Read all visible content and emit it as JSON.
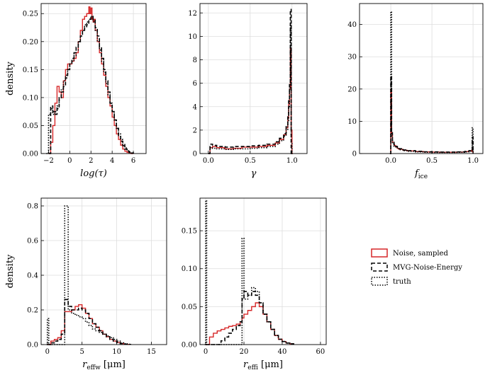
{
  "legend": {
    "entries": [
      {
        "label": "Noise, sampled",
        "color": "#d62728",
        "dash": "solid"
      },
      {
        "label": "MVG-Noise-Energy",
        "color": "#000000",
        "dash": "dashed"
      },
      {
        "label": "truth",
        "color": "#000000",
        "dash": "dotted"
      }
    ],
    "placement": "right-middle"
  },
  "chart_data": [
    {
      "type": "step",
      "xlabel": "log(τ)",
      "xlabel_style": "italic",
      "ylabel": "density",
      "xlim": [
        -2.7,
        7.2
      ],
      "ylim": [
        0,
        0.268
      ],
      "xticks": [
        -2,
        0,
        2,
        4,
        6
      ],
      "xticklabels": [
        "−2",
        "0",
        "2",
        "4",
        "6"
      ],
      "yticks": [
        0,
        0.05,
        0.1,
        0.15,
        0.2,
        0.25
      ],
      "yticklabels": [
        "0.00",
        "0.05",
        "0.10",
        "0.15",
        "0.20",
        "0.25"
      ],
      "grid": true,
      "series": [
        {
          "name": "Noise, sampled",
          "x": [
            -2.0,
            -1.8,
            -1.6,
            -1.4,
            -1.2,
            -1.0,
            -0.8,
            -0.6,
            -0.4,
            -0.2,
            0.0,
            0.2,
            0.4,
            0.6,
            0.8,
            1.0,
            1.2,
            1.4,
            1.6,
            1.8,
            1.9,
            2.0,
            2.1,
            2.2,
            2.3,
            2.4,
            2.6,
            2.8,
            3.0,
            3.2,
            3.4,
            3.6,
            3.8,
            4.0,
            4.2,
            4.4,
            4.6,
            4.8,
            5.0,
            5.2,
            5.4,
            5.6,
            5.8,
            6.0
          ],
          "y": [
            0.0,
            0.02,
            0.05,
            0.09,
            0.12,
            0.11,
            0.1,
            0.13,
            0.15,
            0.16,
            0.16,
            0.165,
            0.17,
            0.18,
            0.2,
            0.22,
            0.24,
            0.245,
            0.25,
            0.262,
            0.25,
            0.26,
            0.24,
            0.235,
            0.24,
            0.22,
            0.2,
            0.18,
            0.16,
            0.14,
            0.12,
            0.1,
            0.085,
            0.065,
            0.05,
            0.035,
            0.025,
            0.015,
            0.008,
            0.004,
            0.002,
            0.001,
            0.0,
            0.0
          ]
        },
        {
          "name": "MVG-Noise-Energy",
          "x": [
            -2.0,
            -1.8,
            -1.6,
            -1.4,
            -1.2,
            -1.0,
            -0.8,
            -0.6,
            -0.4,
            -0.2,
            0.0,
            0.2,
            0.4,
            0.6,
            0.8,
            1.0,
            1.2,
            1.4,
            1.6,
            1.8,
            2.0,
            2.2,
            2.4,
            2.6,
            2.8,
            3.0,
            3.2,
            3.4,
            3.6,
            3.8,
            4.0,
            4.2,
            4.4,
            4.6,
            4.8,
            5.0,
            5.2,
            5.4,
            5.6,
            5.8,
            6.0
          ],
          "y": [
            0.0,
            0.085,
            0.075,
            0.07,
            0.08,
            0.1,
            0.11,
            0.12,
            0.135,
            0.15,
            0.16,
            0.17,
            0.18,
            0.19,
            0.2,
            0.21,
            0.22,
            0.225,
            0.23,
            0.24,
            0.245,
            0.24,
            0.225,
            0.21,
            0.19,
            0.17,
            0.15,
            0.13,
            0.11,
            0.09,
            0.075,
            0.06,
            0.045,
            0.032,
            0.022,
            0.014,
            0.008,
            0.004,
            0.002,
            0.001,
            0.0
          ]
        },
        {
          "name": "truth",
          "x": [
            -2.2,
            -2.0,
            -1.8,
            -1.6,
            -1.4,
            -1.2,
            -1.0,
            -0.8,
            -0.6,
            -0.4,
            -0.2,
            0.0,
            0.2,
            0.4,
            0.6,
            0.8,
            1.0,
            1.2,
            1.4,
            1.6,
            1.8,
            2.0,
            2.2,
            2.4,
            2.6,
            2.8,
            3.0,
            3.2,
            3.4,
            3.6,
            3.8,
            4.0,
            4.2,
            4.4,
            4.6,
            4.8,
            5.0,
            5.2,
            5.4,
            5.6,
            5.8,
            6.0
          ],
          "y": [
            0.0,
            0.07,
            0.08,
            0.07,
            0.075,
            0.085,
            0.1,
            0.115,
            0.13,
            0.14,
            0.15,
            0.16,
            0.165,
            0.175,
            0.185,
            0.2,
            0.21,
            0.22,
            0.23,
            0.235,
            0.24,
            0.245,
            0.235,
            0.22,
            0.2,
            0.185,
            0.165,
            0.145,
            0.125,
            0.105,
            0.09,
            0.075,
            0.06,
            0.045,
            0.035,
            0.025,
            0.016,
            0.01,
            0.005,
            0.003,
            0.001,
            0.0
          ]
        }
      ]
    },
    {
      "type": "step",
      "xlabel": "γ",
      "xlabel_style": "italic",
      "ylabel": "",
      "xlim": [
        -0.1,
        1.18
      ],
      "ylim": [
        0,
        12.8
      ],
      "xticks": [
        0,
        0.5,
        1.0
      ],
      "xticklabels": [
        "0.0",
        "0.5",
        "1.0"
      ],
      "yticks": [
        0,
        2,
        4,
        6,
        8,
        10,
        12
      ],
      "yticklabels": [
        "0",
        "2",
        "4",
        "6",
        "8",
        "10",
        "12"
      ],
      "grid": true,
      "series": [
        {
          "name": "Noise, sampled",
          "x": [
            0.0,
            0.02,
            0.05,
            0.1,
            0.2,
            0.3,
            0.4,
            0.5,
            0.6,
            0.7,
            0.8,
            0.85,
            0.9,
            0.93,
            0.95,
            0.96,
            0.97,
            0.98,
            0.99,
            1.0,
            1.01
          ],
          "y": [
            0.0,
            0.5,
            0.6,
            0.5,
            0.4,
            0.45,
            0.55,
            0.55,
            0.6,
            0.7,
            0.9,
            1.2,
            1.6,
            2.2,
            3.0,
            4.2,
            5.5,
            9.0,
            2.0,
            0.0,
            0.0
          ]
        },
        {
          "name": "MVG-Noise-Energy",
          "x": [
            0.0,
            0.02,
            0.05,
            0.1,
            0.2,
            0.3,
            0.4,
            0.5,
            0.6,
            0.7,
            0.8,
            0.85,
            0.9,
            0.93,
            0.95,
            0.96,
            0.97,
            0.98,
            0.99,
            1.0,
            1.01
          ],
          "y": [
            0.0,
            0.8,
            0.7,
            0.6,
            0.55,
            0.6,
            0.6,
            0.65,
            0.7,
            0.8,
            1.0,
            1.3,
            1.7,
            2.3,
            3.2,
            4.5,
            6.0,
            12.3,
            0.0,
            0.0,
            0.0
          ]
        },
        {
          "name": "truth",
          "x": [
            0.0,
            0.02,
            0.05,
            0.1,
            0.2,
            0.3,
            0.4,
            0.5,
            0.6,
            0.7,
            0.8,
            0.85,
            0.9,
            0.93,
            0.95,
            0.96,
            0.97,
            0.98,
            0.99,
            1.0,
            1.01
          ],
          "y": [
            0.0,
            0.5,
            0.45,
            0.4,
            0.35,
            0.4,
            0.4,
            0.45,
            0.5,
            0.6,
            0.8,
            1.1,
            1.5,
            2.0,
            2.8,
            4.0,
            5.5,
            11.0,
            1.0,
            0.0,
            0.0
          ]
        }
      ]
    },
    {
      "type": "step",
      "xlabel": "fice",
      "xlabel_style": "italic-subscript",
      "ylabel": "",
      "xlim": [
        -0.38,
        1.12
      ],
      "ylim": [
        0,
        46.5
      ],
      "xticks": [
        0,
        0.5,
        1.0
      ],
      "xticklabels": [
        "0.0",
        "0.5",
        "1.0"
      ],
      "yticks": [
        0,
        10,
        20,
        30,
        40
      ],
      "yticklabels": [
        "0",
        "10",
        "20",
        "30",
        "40"
      ],
      "grid": true,
      "series": [
        {
          "name": "Noise, sampled",
          "x": [
            -0.01,
            0.0,
            0.01,
            0.02,
            0.04,
            0.06,
            0.08,
            0.1,
            0.15,
            0.2,
            0.3,
            0.4,
            0.5,
            0.6,
            0.7,
            0.8,
            0.9,
            0.95,
            0.98,
            0.99,
            1.0
          ],
          "y": [
            0.0,
            20.0,
            6.0,
            3.5,
            2.5,
            2.0,
            1.6,
            1.3,
            1.0,
            0.8,
            0.6,
            0.5,
            0.45,
            0.4,
            0.4,
            0.45,
            0.6,
            0.8,
            1.0,
            0.6,
            0.0
          ]
        },
        {
          "name": "MVG-Noise-Energy",
          "x": [
            -0.01,
            0.0,
            0.01,
            0.02,
            0.04,
            0.06,
            0.08,
            0.1,
            0.15,
            0.2,
            0.3,
            0.4,
            0.5,
            0.6,
            0.7,
            0.8,
            0.9,
            0.95,
            0.98,
            0.99,
            1.0
          ],
          "y": [
            0.0,
            24.0,
            7.0,
            4.0,
            2.8,
            2.2,
            1.8,
            1.5,
            1.1,
            0.9,
            0.7,
            0.55,
            0.5,
            0.45,
            0.45,
            0.5,
            0.65,
            0.9,
            1.2,
            5.0,
            0.0
          ]
        },
        {
          "name": "truth",
          "x": [
            -0.01,
            0.0,
            0.01,
            0.02,
            0.04,
            0.06,
            0.08,
            0.1,
            0.15,
            0.2,
            0.3,
            0.4,
            0.5,
            0.6,
            0.7,
            0.8,
            0.9,
            0.95,
            0.98,
            0.99,
            1.0
          ],
          "y": [
            0.0,
            44.0,
            5.0,
            3.0,
            2.2,
            1.8,
            1.5,
            1.2,
            0.9,
            0.7,
            0.5,
            0.4,
            0.35,
            0.35,
            0.35,
            0.4,
            0.5,
            0.7,
            1.0,
            8.0,
            0.0
          ]
        }
      ]
    },
    {
      "type": "step",
      "xlabel": "reffw [μm]",
      "xlabel_style": "italic-subscript",
      "ylabel": "density",
      "xlim": [
        -0.9,
        17.2
      ],
      "ylim": [
        0,
        0.845
      ],
      "xticks": [
        0,
        5,
        10,
        15
      ],
      "xticklabels": [
        "0",
        "5",
        "10",
        "15"
      ],
      "yticks": [
        0,
        0.2,
        0.4,
        0.6,
        0.8
      ],
      "yticklabels": [
        "0.0",
        "0.2",
        "0.4",
        "0.6",
        "0.8"
      ],
      "grid": true,
      "series": [
        {
          "name": "Noise, sampled",
          "x": [
            0.0,
            0.5,
            1.0,
            1.5,
            2.0,
            2.5,
            3.0,
            3.5,
            4.0,
            4.5,
            5.0,
            5.5,
            6.0,
            6.5,
            7.0,
            7.5,
            8.0,
            8.5,
            9.0,
            9.5,
            10.0,
            10.5,
            11.0,
            11.5,
            12.0
          ],
          "y": [
            0.0,
            0.02,
            0.03,
            0.04,
            0.08,
            0.19,
            0.19,
            0.2,
            0.22,
            0.23,
            0.21,
            0.18,
            0.15,
            0.12,
            0.1,
            0.08,
            0.06,
            0.045,
            0.03,
            0.02,
            0.012,
            0.006,
            0.003,
            0.001,
            0.0
          ]
        },
        {
          "name": "MVG-Noise-Energy",
          "x": [
            0.0,
            0.5,
            1.0,
            1.5,
            2.0,
            2.5,
            3.0,
            3.5,
            4.0,
            4.5,
            5.0,
            5.5,
            6.0,
            6.5,
            7.0,
            7.5,
            8.0,
            8.5,
            9.0,
            9.5,
            10.0,
            10.5,
            11.0,
            11.5,
            12.0
          ],
          "y": [
            0.0,
            0.01,
            0.02,
            0.03,
            0.06,
            0.26,
            0.22,
            0.2,
            0.2,
            0.21,
            0.2,
            0.18,
            0.15,
            0.12,
            0.1,
            0.08,
            0.06,
            0.045,
            0.03,
            0.02,
            0.012,
            0.006,
            0.003,
            0.001,
            0.0
          ]
        },
        {
          "name": "truth",
          "x": [
            -0.1,
            0.0,
            0.2,
            1.0,
            1.5,
            2.0,
            2.5,
            3.0,
            3.5,
            4.0,
            4.5,
            5.0,
            5.5,
            6.0,
            6.5,
            7.0,
            7.5,
            8.0,
            8.5,
            9.0,
            9.5,
            10.0,
            10.5,
            11.0,
            11.5,
            12.0
          ],
          "y": [
            0.0,
            0.15,
            0.0,
            0.0,
            0.0,
            0.0,
            0.8,
            0.2,
            0.18,
            0.17,
            0.16,
            0.15,
            0.13,
            0.11,
            0.09,
            0.08,
            0.07,
            0.06,
            0.05,
            0.04,
            0.03,
            0.02,
            0.01,
            0.005,
            0.002,
            0.0
          ]
        }
      ]
    },
    {
      "type": "step",
      "xlabel": "reffi [μm]",
      "xlabel_style": "italic-subscript",
      "ylabel": "",
      "xlim": [
        -3,
        63
      ],
      "ylim": [
        0,
        0.193
      ],
      "xticks": [
        0,
        20,
        40,
        60
      ],
      "xticklabels": [
        "0",
        "20",
        "40",
        "60"
      ],
      "yticks": [
        0,
        0.05,
        0.1,
        0.15
      ],
      "yticklabels": [
        "0.00",
        "0.05",
        "0.10",
        "0.15"
      ],
      "grid": true,
      "series": [
        {
          "name": "Noise, sampled",
          "x": [
            0,
            2,
            4,
            6,
            8,
            10,
            12,
            14,
            16,
            18,
            19,
            20,
            22,
            24,
            26,
            28,
            30,
            32,
            34,
            36,
            38,
            40,
            42,
            44,
            46
          ],
          "y": [
            0.0,
            0.01,
            0.015,
            0.018,
            0.02,
            0.022,
            0.024,
            0.025,
            0.027,
            0.03,
            0.035,
            0.04,
            0.045,
            0.05,
            0.055,
            0.05,
            0.04,
            0.03,
            0.02,
            0.012,
            0.007,
            0.004,
            0.002,
            0.001,
            0.0
          ]
        },
        {
          "name": "MVG-Noise-Energy",
          "x": [
            0,
            2,
            4,
            6,
            8,
            10,
            12,
            14,
            16,
            18,
            19,
            20,
            22,
            24,
            26,
            28,
            30,
            32,
            34,
            36,
            38,
            40,
            42,
            44,
            46
          ],
          "y": [
            0.0,
            0.0,
            0.0,
            0.0,
            0.005,
            0.01,
            0.015,
            0.02,
            0.025,
            0.03,
            0.06,
            0.07,
            0.065,
            0.07,
            0.065,
            0.055,
            0.04,
            0.03,
            0.02,
            0.012,
            0.007,
            0.004,
            0.002,
            0.001,
            0.0
          ]
        },
        {
          "name": "truth",
          "x": [
            -0.5,
            0.0,
            0.5,
            2,
            18,
            19,
            20,
            22,
            24,
            26,
            28,
            30,
            32,
            34,
            36,
            38,
            40,
            42,
            44,
            46
          ],
          "y": [
            0.0,
            0.19,
            0.0,
            0.0,
            0.0,
            0.14,
            0.06,
            0.065,
            0.075,
            0.07,
            0.055,
            0.04,
            0.03,
            0.02,
            0.012,
            0.007,
            0.004,
            0.002,
            0.001,
            0.0
          ]
        }
      ]
    }
  ]
}
